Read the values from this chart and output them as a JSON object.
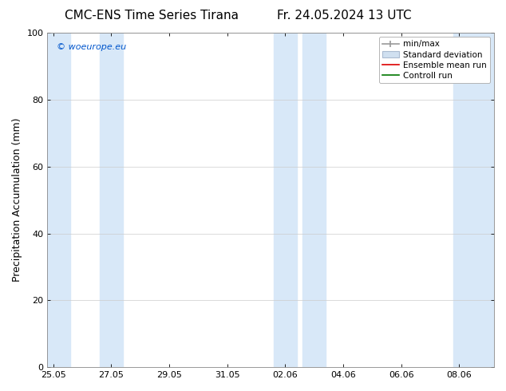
{
  "title_left": "CMC-ENS Time Series Tirana",
  "title_right": "Fr. 24.05.2024 13 UTC",
  "ylabel": "Precipitation Accumulation (mm)",
  "ylim": [
    0,
    100
  ],
  "yticks": [
    0,
    20,
    40,
    60,
    80,
    100
  ],
  "bg_color": "#ffffff",
  "plot_bg_color": "#ffffff",
  "watermark": "© woeurope.eu",
  "watermark_color": "#0055cc",
  "x_tick_labels": [
    "25.05",
    "27.05",
    "29.05",
    "31.05",
    "02.06",
    "04.06",
    "06.06",
    "08.06"
  ],
  "x_tick_positions": [
    0,
    2,
    4,
    6,
    8,
    10,
    12,
    14
  ],
  "xmin": -0.2,
  "xmax": 15.2,
  "band_color": "#d8e8f8",
  "band_regions": [
    [
      -0.2,
      0.6
    ],
    [
      1.6,
      2.4
    ],
    [
      7.6,
      8.4
    ],
    [
      8.6,
      9.4
    ],
    [
      13.8,
      15.2
    ]
  ],
  "grid_color": "#cccccc",
  "font_size_title": 11,
  "font_size_tick": 8,
  "font_size_legend": 7.5,
  "font_size_ylabel": 9,
  "font_size_watermark": 8
}
